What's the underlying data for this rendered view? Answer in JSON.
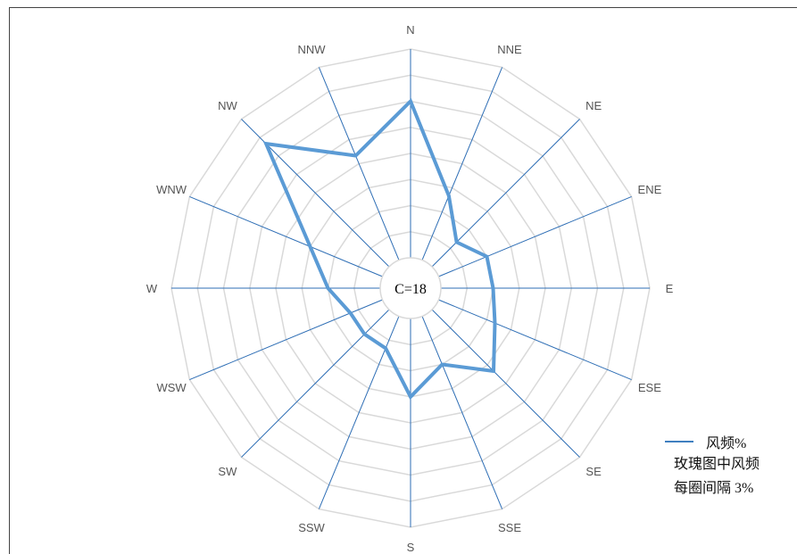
{
  "chart_data": {
    "type": "radar",
    "title": "",
    "directions": [
      "N",
      "NNE",
      "NE",
      "ENE",
      "E",
      "ESE",
      "SE",
      "SSE",
      "S",
      "SSW",
      "SW",
      "WSW",
      "W",
      "WNW",
      "NW",
      "NNW"
    ],
    "series": [
      {
        "name": "风频%",
        "values": [
          18,
          8,
          4,
          6,
          6,
          7,
          10,
          6,
          9,
          4,
          4,
          4,
          6,
          9,
          20,
          13
        ]
      }
    ],
    "rings": 8,
    "calm_label": "C=18",
    "colors": {
      "series": "#5b9bd5",
      "spokes": "#2e6eb5",
      "rings": "#d9d9d9"
    }
  },
  "legend": {
    "series_label": "风频%",
    "note_line1": "玫瑰图中风频",
    "note_line2": "每圈间隔 3%"
  }
}
